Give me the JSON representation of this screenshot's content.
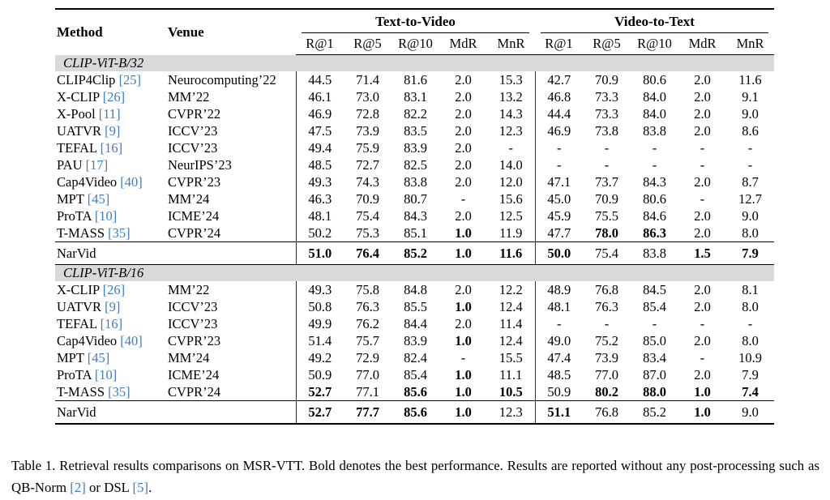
{
  "colors": {
    "cite_blue": "#3e7dbe",
    "band_gray": "#d9d9d9"
  },
  "header": {
    "method": "Method",
    "venue": "Venue",
    "groups": [
      {
        "label": "Text-to-Video"
      },
      {
        "label": "Video-to-Text"
      }
    ],
    "metrics": [
      "R@1",
      "R@5",
      "R@10",
      "MdR",
      "MnR"
    ]
  },
  "sections": [
    {
      "title": "CLIP-ViT-B/32",
      "rows": [
        {
          "method": "CLIP4Clip",
          "cite": "[25]",
          "venue": "Neurocomputing’22",
          "cells": [
            "44.5",
            "71.4",
            "81.6",
            "2.0",
            "15.3",
            "42.7",
            "70.9",
            "80.6",
            "2.0",
            "11.6"
          ],
          "bold": []
        },
        {
          "method": "X-CLIP",
          "cite": "[26]",
          "venue": "MM’22",
          "cells": [
            "46.1",
            "73.0",
            "83.1",
            "2.0",
            "13.2",
            "46.8",
            "73.3",
            "84.0",
            "2.0",
            "9.1"
          ],
          "bold": []
        },
        {
          "method": "X-Pool",
          "cite": "[11]",
          "venue": "CVPR’22",
          "cells": [
            "46.9",
            "72.8",
            "82.2",
            "2.0",
            "14.3",
            "44.4",
            "73.3",
            "84.0",
            "2.0",
            "9.0"
          ],
          "bold": []
        },
        {
          "method": "UATVR",
          "cite": "[9]",
          "venue": "ICCV’23",
          "cells": [
            "47.5",
            "73.9",
            "83.5",
            "2.0",
            "12.3",
            "46.9",
            "73.8",
            "83.8",
            "2.0",
            "8.6"
          ],
          "bold": []
        },
        {
          "method": "TEFAL",
          "cite": "[16]",
          "venue": "ICCV’23",
          "cells": [
            "49.4",
            "75.9",
            "83.9",
            "2.0",
            "-",
            "-",
            "-",
            "-",
            "-",
            "-"
          ],
          "bold": []
        },
        {
          "method": "PAU",
          "cite": "[17]",
          "venue": "NeurIPS’23",
          "cells": [
            "48.5",
            "72.7",
            "82.5",
            "2.0",
            "14.0",
            "-",
            "-",
            "-",
            "-",
            "-"
          ],
          "bold": []
        },
        {
          "method": "Cap4Video",
          "cite": "[40]",
          "venue": "CVPR’23",
          "cells": [
            "49.3",
            "74.3",
            "83.8",
            "2.0",
            "12.0",
            "47.1",
            "73.7",
            "84.3",
            "2.0",
            "8.7"
          ],
          "bold": []
        },
        {
          "method": "MPT",
          "cite": "[45]",
          "venue": "MM’24",
          "cells": [
            "46.3",
            "70.9",
            "80.7",
            "-",
            "15.6",
            "45.0",
            "70.9",
            "80.6",
            "-",
            "12.7"
          ],
          "bold": []
        },
        {
          "method": "ProTA",
          "cite": "[10]",
          "venue": "ICME’24",
          "cells": [
            "48.1",
            "75.4",
            "84.3",
            "2.0",
            "12.5",
            "45.9",
            "75.5",
            "84.6",
            "2.0",
            "9.0"
          ],
          "bold": []
        },
        {
          "method": "T-MASS",
          "cite": "[35]",
          "venue": "CVPR’24",
          "cells": [
            "50.2",
            "75.3",
            "85.1",
            "1.0",
            "11.9",
            "47.7",
            "78.0",
            "86.3",
            "2.0",
            "8.0"
          ],
          "bold": [
            3,
            6,
            7
          ]
        }
      ],
      "summary": {
        "method": "NarVid",
        "cite": "",
        "venue": "",
        "cells": [
          "51.0",
          "76.4",
          "85.2",
          "1.0",
          "11.6",
          "50.0",
          "75.4",
          "83.8",
          "1.5",
          "7.9"
        ],
        "bold": [
          0,
          1,
          2,
          3,
          4,
          5,
          8,
          9
        ]
      }
    },
    {
      "title": "CLIP-ViT-B/16",
      "rows": [
        {
          "method": "X-CLIP",
          "cite": "[26]",
          "venue": "MM’22",
          "cells": [
            "49.3",
            "75.8",
            "84.8",
            "2.0",
            "12.2",
            "48.9",
            "76.8",
            "84.5",
            "2.0",
            "8.1"
          ],
          "bold": []
        },
        {
          "method": "UATVR",
          "cite": "[9]",
          "venue": "ICCV’23",
          "cells": [
            "50.8",
            "76.3",
            "85.5",
            "1.0",
            "12.4",
            "48.1",
            "76.3",
            "85.4",
            "2.0",
            "8.0"
          ],
          "bold": [
            3
          ]
        },
        {
          "method": "TEFAL",
          "cite": "[16]",
          "venue": "ICCV’23",
          "cells": [
            "49.9",
            "76.2",
            "84.4",
            "2.0",
            "11.4",
            "-",
            "-",
            "-",
            "-",
            "-"
          ],
          "bold": []
        },
        {
          "method": "Cap4Video",
          "cite": "[40]",
          "venue": "CVPR’23",
          "cells": [
            "51.4",
            "75.7",
            "83.9",
            "1.0",
            "12.4",
            "49.0",
            "75.2",
            "85.0",
            "2.0",
            "8.0"
          ],
          "bold": [
            3
          ]
        },
        {
          "method": "MPT",
          "cite": "[45]",
          "venue": "MM’24",
          "cells": [
            "49.2",
            "72.9",
            "82.4",
            "-",
            "15.5",
            "47.4",
            "73.9",
            "83.4",
            "-",
            "10.9"
          ],
          "bold": []
        },
        {
          "method": "ProTA",
          "cite": "[10]",
          "venue": "ICME’24",
          "cells": [
            "50.9",
            "77.0",
            "85.4",
            "1.0",
            "11.1",
            "48.5",
            "77.0",
            "87.0",
            "2.0",
            "7.9"
          ],
          "bold": [
            3
          ]
        },
        {
          "method": "T-MASS",
          "cite": "[35]",
          "venue": "CVPR’24",
          "cells": [
            "52.7",
            "77.1",
            "85.6",
            "1.0",
            "10.5",
            "50.9",
            "80.2",
            "88.0",
            "1.0",
            "7.4"
          ],
          "bold": [
            0,
            2,
            3,
            4,
            6,
            7,
            8,
            9
          ]
        }
      ],
      "summary": {
        "method": "NarVid",
        "cite": "",
        "venue": "",
        "cells": [
          "52.7",
          "77.7",
          "85.6",
          "1.0",
          "12.3",
          "51.1",
          "76.8",
          "85.2",
          "1.0",
          "9.0"
        ],
        "bold": [
          0,
          1,
          2,
          3,
          5,
          8
        ]
      }
    }
  ],
  "caption": {
    "segments": [
      {
        "t": "Table 1. Retrieval results comparisons on MSR-VTT. Bold denotes the best performance. Results are reported without any post-processing such as QB-Norm ",
        "cite": false
      },
      {
        "t": "[2]",
        "cite": true
      },
      {
        "t": " or DSL ",
        "cite": false
      },
      {
        "t": "[5]",
        "cite": true
      },
      {
        "t": ".",
        "cite": false
      }
    ]
  }
}
